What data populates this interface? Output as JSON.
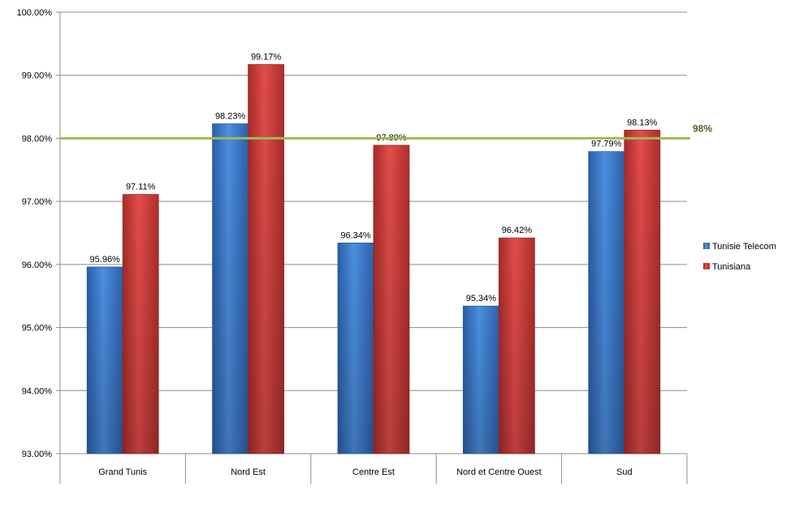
{
  "chart_data": {
    "type": "bar",
    "categories": [
      "Grand Tunis",
      "Nord Est",
      "Centre Est",
      "Nord et Centre Ouest",
      "Sud"
    ],
    "series": [
      {
        "name": "Tunisie Telecom",
        "values": [
          95.96,
          98.23,
          96.34,
          95.34,
          97.79
        ],
        "labels": [
          "95.96%",
          "98.23%",
          "96.34%",
          "95.34%",
          "97.79%"
        ],
        "color": "#3b7bd0"
      },
      {
        "name": "Tunisiana",
        "values": [
          97.11,
          99.17,
          97.89,
          96.42,
          98.13
        ],
        "labels": [
          "97.11%",
          "99.17%",
          "97.89%",
          "96.42%",
          "98.13%"
        ],
        "color": "#d6403e"
      }
    ],
    "y_ticks": [
      93,
      94,
      95,
      96,
      97,
      98,
      99,
      100
    ],
    "y_tick_labels": [
      "93.00%",
      "94.00%",
      "95.00%",
      "96.00%",
      "97.00%",
      "98.00%",
      "99.00%",
      "100.00%"
    ],
    "ylim": [
      93,
      100
    ],
    "grid": true,
    "legend_position": "right",
    "reference_line": {
      "value": 98,
      "label": "98%",
      "color": "#9bbb59",
      "label_color": "#4f6228"
    },
    "title": "",
    "xlabel": "",
    "ylabel": ""
  }
}
